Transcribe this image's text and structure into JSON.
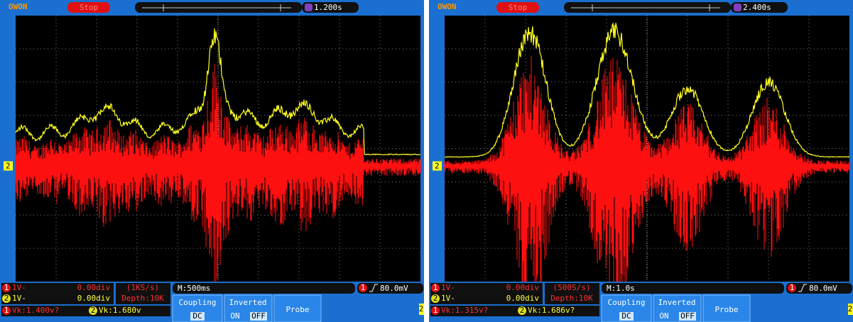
{
  "screens": [
    {
      "logo": "OWON",
      "status": "Stop",
      "trigger_time": "1.200s",
      "ch1": {
        "number": "1",
        "scale": "1V-",
        "offset": "0.00div"
      },
      "ch2": {
        "number": "2",
        "scale": "1V-",
        "offset": "0.00div"
      },
      "sample_rate": "(1KS/s)",
      "depth": "Depth:10K",
      "timebase": "M:500ms",
      "trigger_level": "80.0mV",
      "vk1": "Vk:1.400v?",
      "vk2": "Vk:1.680v",
      "menu": {
        "coupling": "Coupling",
        "coupling_value": "DC",
        "inverted": "Inverted",
        "on": "ON",
        "off": "OFF",
        "probe": "Probe"
      }
    },
    {
      "logo": "OWON",
      "status": "Stop",
      "trigger_time": "2.400s",
      "ch1": {
        "number": "1",
        "scale": "1V-",
        "offset": "0.00div"
      },
      "ch2": {
        "number": "2",
        "scale": "1V-",
        "offset": "0.00div"
      },
      "sample_rate": "(500S/s)",
      "depth": "Depth:10K",
      "timebase": "M:1.0s",
      "trigger_level": "80.0mV",
      "vk1": "Vk:1.315v?",
      "vk2": "Vk:1.686v?",
      "menu": {
        "coupling": "Coupling",
        "coupling_value": "DC",
        "inverted": "Inverted",
        "on": "ON",
        "off": "OFF",
        "probe": "Probe"
      }
    }
  ]
}
